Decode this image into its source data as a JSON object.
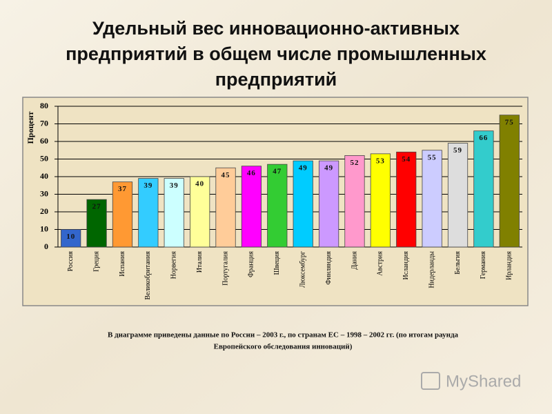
{
  "chart_data": {
    "type": "bar",
    "title": [
      "Удельный вес инновационно-активных",
      "предприятий в общем числе промышленных",
      "предприятий"
    ],
    "y_label": "Процент",
    "categories": [
      "Россия",
      "Греция",
      "Испания",
      "Великобритания",
      "Норвегия",
      "Италия",
      "Португалия",
      "Франция",
      "Швеция",
      "Люксембург",
      "Финляндия",
      "Дания",
      "Австрия",
      "Исландия",
      "Нидерланды",
      "Бельгия",
      "Германия",
      "Ирландия"
    ],
    "values": [
      10,
      27,
      37,
      39,
      39,
      40,
      45,
      46,
      47,
      49,
      49,
      52,
      53,
      54,
      55,
      59,
      66,
      75
    ],
    "colors": [
      "#3366cc",
      "#006600",
      "#ff9933",
      "#33ccff",
      "#ccffff",
      "#ffff99",
      "#ffcc99",
      "#ff00ff",
      "#33cc33",
      "#00ccff",
      "#cc99ff",
      "#ff99cc",
      "#ffff00",
      "#ff0000",
      "#ccccff",
      "#dddddd",
      "#33cccc",
      "#808000"
    ],
    "ylim": [
      0,
      80
    ],
    "yticks": [
      0,
      10,
      20,
      30,
      40,
      50,
      60,
      70,
      80
    ],
    "grid": true,
    "note": [
      "В диаграмме приведены данные по России – 2003 г., по странам ЕС – 1998 – 2002 гг. (по итогам раунда",
      "Европейского обследования инноваций)"
    ],
    "watermark": "MyShared"
  }
}
